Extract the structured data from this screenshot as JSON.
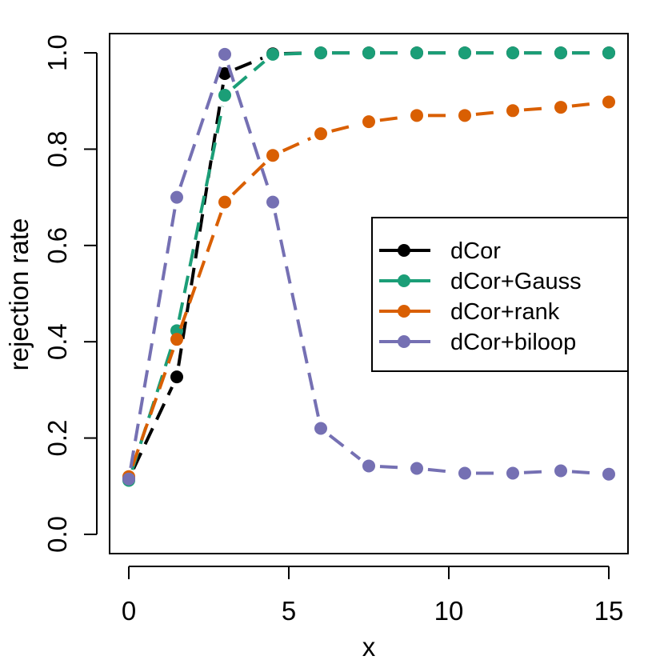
{
  "chart_data": {
    "type": "line",
    "title": "",
    "xlabel": "x",
    "ylabel": "rejection rate",
    "xlim": [
      -0.6,
      15.6
    ],
    "ylim": [
      -0.04,
      1.04
    ],
    "xticks": [
      0,
      5,
      10,
      15
    ],
    "xtick_labels": [
      "0",
      "5",
      "10",
      "15"
    ],
    "yticks": [
      0.0,
      0.2,
      0.4,
      0.6,
      0.8,
      1.0
    ],
    "ytick_labels": [
      "0.0",
      "0.2",
      "0.4",
      "0.6",
      "0.8",
      "1.0"
    ],
    "legend_position": "right",
    "x": [
      0,
      1.5,
      3,
      4.5,
      6,
      7.5,
      9,
      10.5,
      12,
      13.5,
      15
    ],
    "series": [
      {
        "name": "dCor",
        "color": "#000000",
        "values": [
          0.115,
          0.327,
          0.957,
          0.998,
          1.0,
          1.0,
          1.0,
          1.0,
          1.0,
          1.0,
          1.0
        ]
      },
      {
        "name": "dCor+Gauss",
        "color": "#1b9e77",
        "values": [
          0.112,
          0.423,
          0.912,
          0.997,
          1.0,
          1.0,
          1.0,
          1.0,
          1.0,
          1.0,
          1.0
        ]
      },
      {
        "name": "dCor+rank",
        "color": "#d95f02",
        "values": [
          0.12,
          0.405,
          0.69,
          0.787,
          0.832,
          0.857,
          0.87,
          0.87,
          0.88,
          0.887,
          0.898
        ]
      },
      {
        "name": "dCor+biloop",
        "color": "#7570b3",
        "values": [
          0.115,
          0.7,
          0.997,
          0.69,
          0.22,
          0.142,
          0.137,
          0.127,
          0.127,
          0.132,
          0.125
        ]
      }
    ]
  }
}
